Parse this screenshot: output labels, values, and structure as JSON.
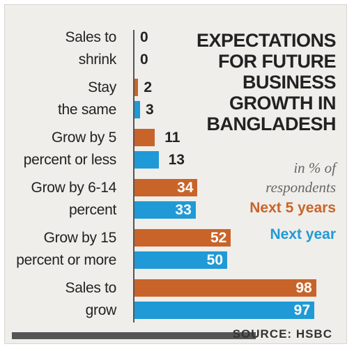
{
  "chart_data": {
    "type": "bar",
    "title_lines": [
      "EXPECTATIONS",
      "FOR FUTURE",
      "BUSINESS",
      "GROWTH IN",
      "BANGLADESH"
    ],
    "subtitle_lines": [
      "in % of",
      "respondents"
    ],
    "categories": [
      {
        "lines": [
          "Sales to",
          "shrink"
        ]
      },
      {
        "lines": [
          "Stay",
          "the same"
        ]
      },
      {
        "lines": [
          "Grow by 5",
          "percent or less"
        ]
      },
      {
        "lines": [
          "Grow by 6-14",
          "percent"
        ]
      },
      {
        "lines": [
          "Grow by 15",
          "percent or more"
        ]
      },
      {
        "lines": [
          "Sales to",
          "grow"
        ]
      }
    ],
    "series": [
      {
        "name": "Next 5 years",
        "color": "#c8642a",
        "values": [
          0,
          2,
          11,
          34,
          52,
          98
        ]
      },
      {
        "name": "Next year",
        "color": "#1f9ad6",
        "values": [
          0,
          3,
          13,
          33,
          50,
          97
        ]
      }
    ],
    "xlim": [
      0,
      100
    ]
  },
  "source": "SOURCE: HSBC"
}
